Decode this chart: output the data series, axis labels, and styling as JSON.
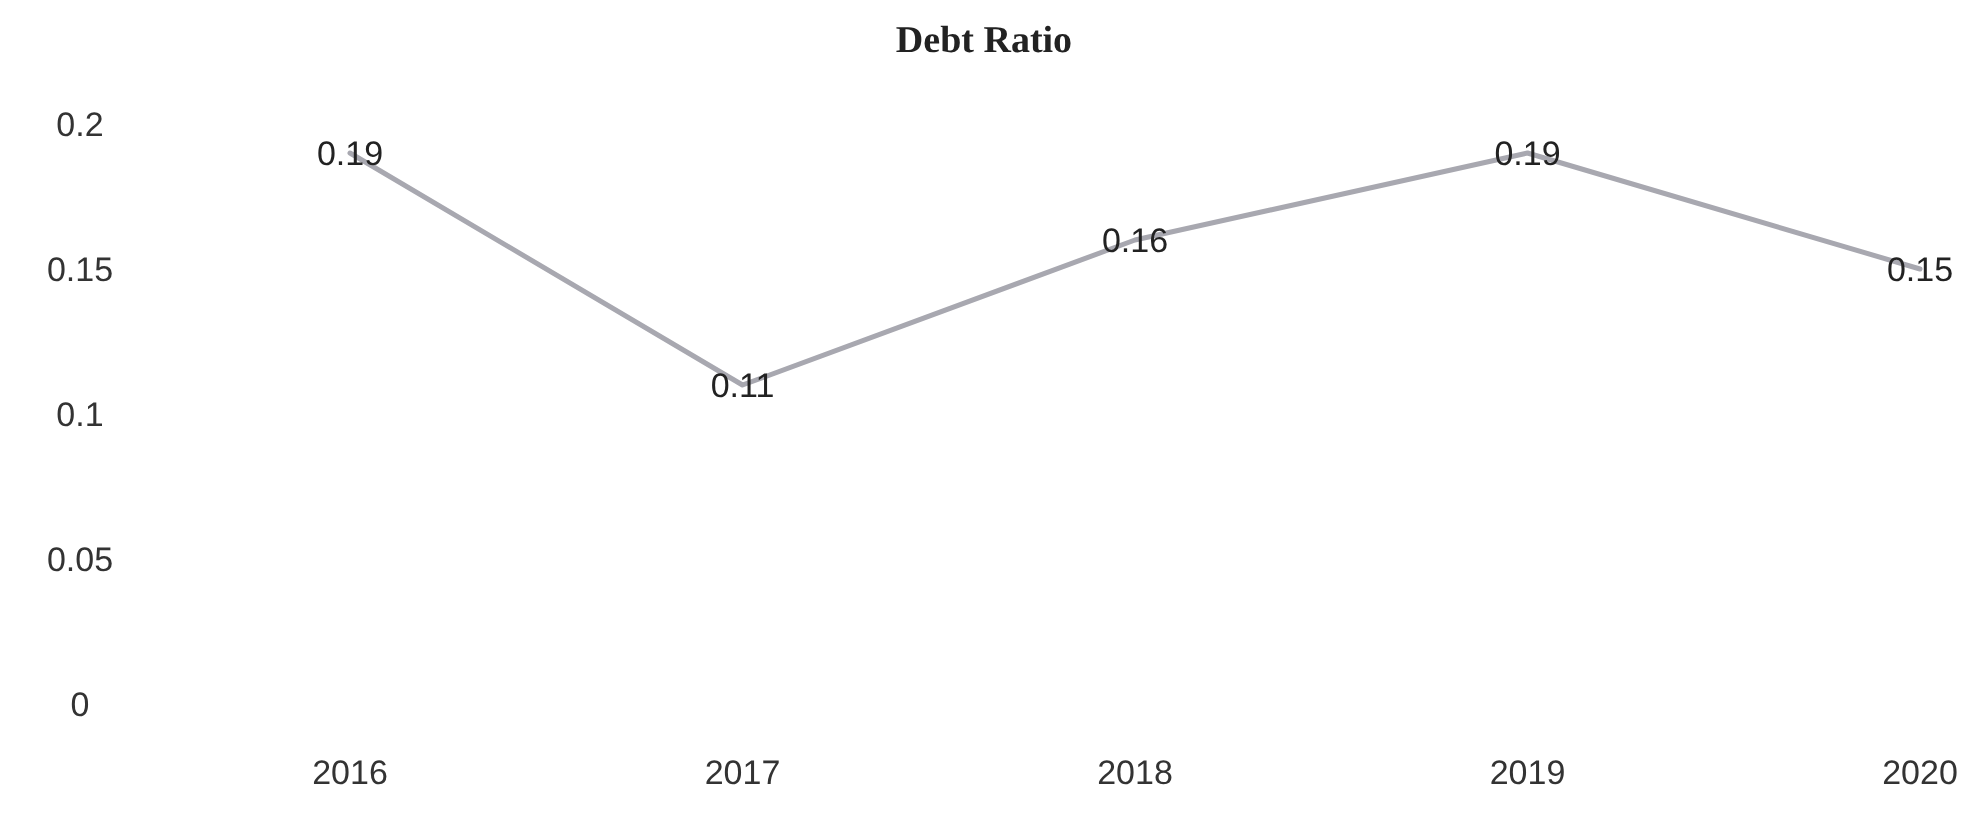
{
  "chart_data": {
    "type": "line",
    "title": "Debt Ratio",
    "categories": [
      "2016",
      "2017",
      "2018",
      "2019",
      "2020"
    ],
    "series": [
      {
        "color": "#a8a8b0",
        "values": [
          0.19,
          0.11,
          0.16,
          0.19,
          0.15
        ]
      }
    ],
    "ylim": [
      0,
      0.2
    ],
    "yticks": [
      0,
      0.05,
      0.1,
      0.15,
      0.2
    ],
    "grid": false,
    "data_labels": true,
    "marker": "none",
    "line_style": "solid"
  }
}
